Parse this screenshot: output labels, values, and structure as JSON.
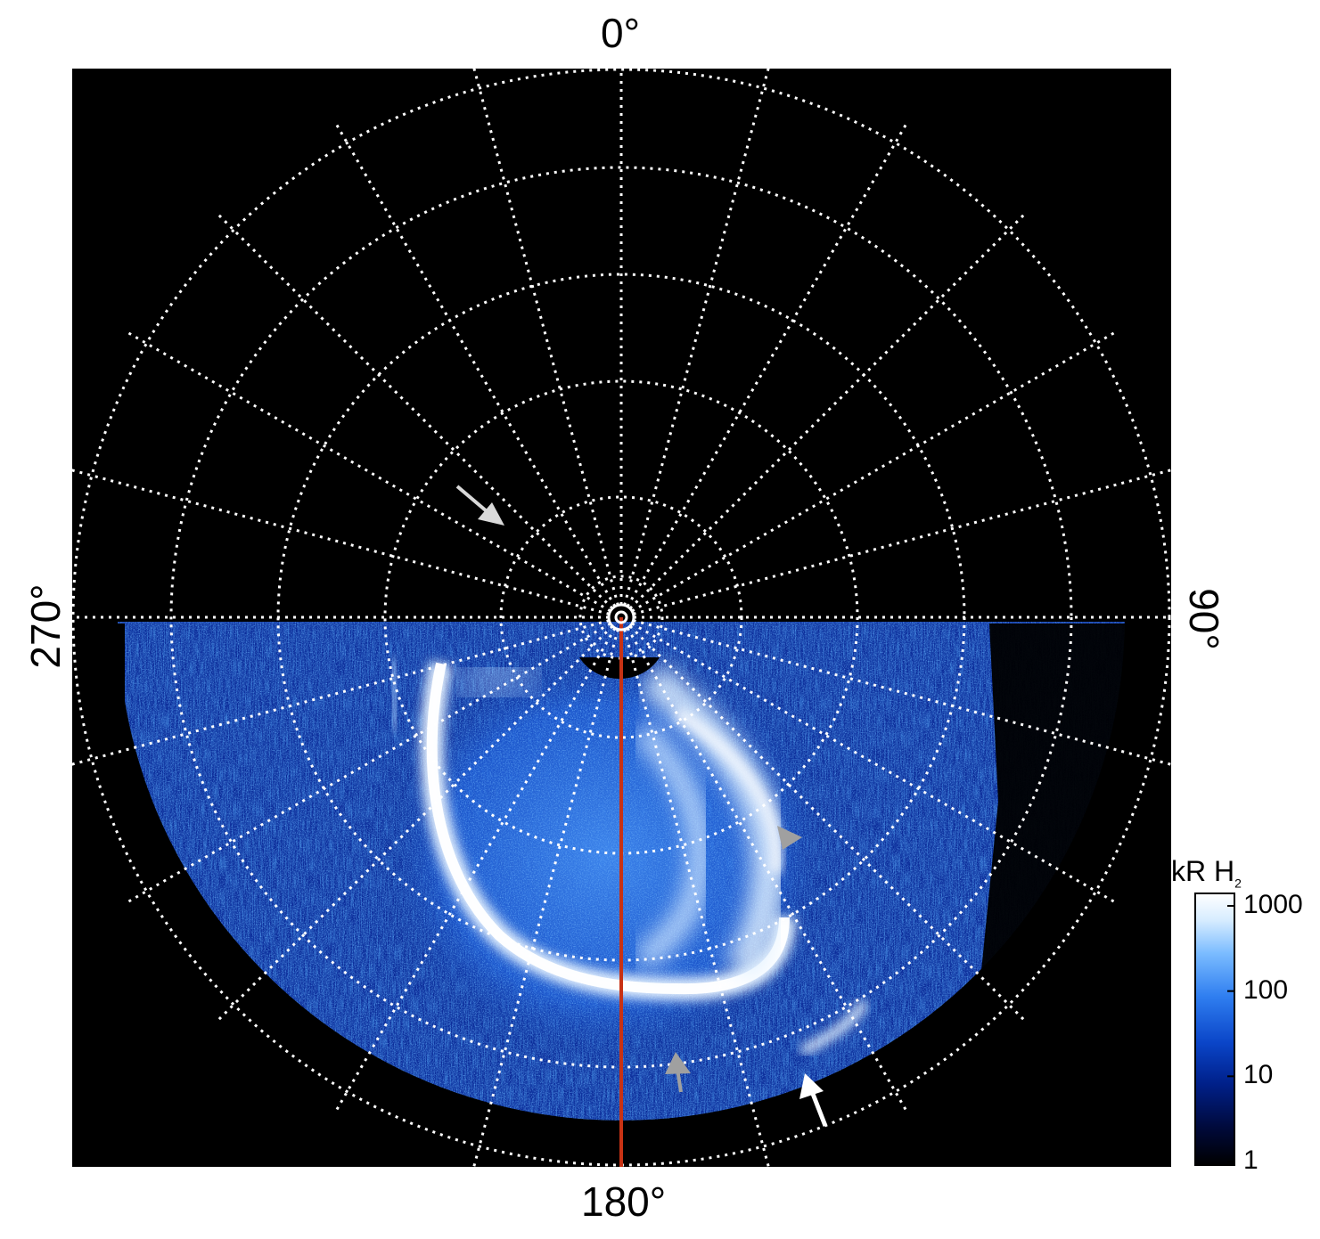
{
  "orientation_labels": {
    "top": "0°",
    "bottom": "180°",
    "left": "270°",
    "right": "90°"
  },
  "colorbar": {
    "unit_main": "kR H",
    "unit_sub": "2",
    "ticks": [
      "1000",
      "100",
      "10",
      "1"
    ],
    "scale": "log",
    "range": [
      1,
      1000
    ],
    "colors": [
      "#000000",
      "#000a3c",
      "#00208a",
      "#0a45c8",
      "#2f7ef0",
      "#7bbcff",
      "#d6ecff",
      "#ffffff"
    ]
  },
  "image_description_colors": {
    "background": "#000000",
    "grid": "#ffffff",
    "meridian_line": "#c83214",
    "arrow_white": "#ffffff",
    "arrow_grey": "#a0a0a0"
  }
}
